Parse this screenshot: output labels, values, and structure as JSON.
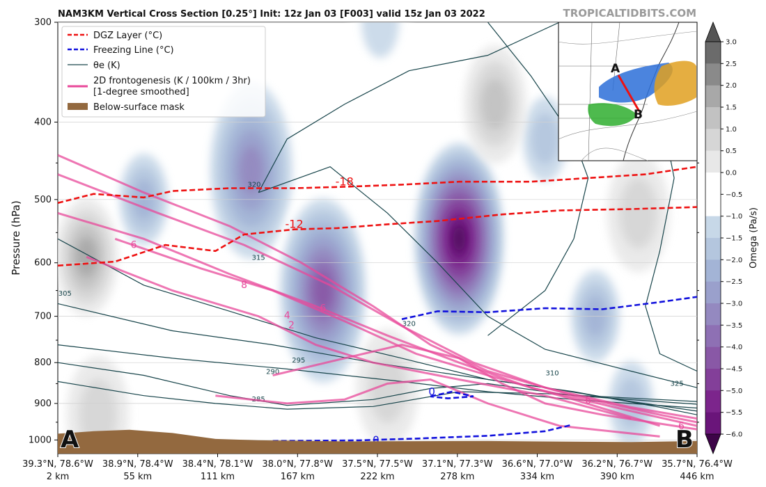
{
  "title": "NAM3KM Vertical Cross Section [0.25°] Init: 12z Jan 03 [F003] valid 15z Jan 03 2022",
  "brand": "TROPICALTIDBITS.COM",
  "colors": {
    "dgz": "#ee1111",
    "freezing": "#1111dd",
    "theta": "#17444a",
    "fronto": "#e8489a",
    "mask": "#93693f"
  },
  "legend": {
    "items": [
      {
        "label": "DGZ Layer (°C)",
        "style": "dgz"
      },
      {
        "label": "Freezing Line (°C)",
        "style": "freezing"
      },
      {
        "label": "θe (K)",
        "style": "theta"
      },
      {
        "label": "2D frontogenesis (K / 100km / 3hr)",
        "label2": "[1-degree smoothed]",
        "style": "fronto"
      },
      {
        "label": "Below-surface mask",
        "style": "mask"
      }
    ]
  },
  "inset": {
    "label_a": "A",
    "label_b": "B"
  },
  "end_labels": {
    "a": "A",
    "b": "B"
  },
  "chart_data": {
    "type": "heatmap",
    "ylabel": "Pressure (hPa)",
    "y_scale": "log",
    "ylim": [
      1040,
      300
    ],
    "y_ticks": [
      300,
      400,
      500,
      600,
      700,
      800,
      900,
      1000
    ],
    "y_minor_ticks": [
      450,
      550,
      650,
      750,
      850,
      950
    ],
    "x_ticks": [
      {
        "latlon": "39.3°N, 78.6°W",
        "km": "2 km"
      },
      {
        "latlon": "38.9°N, 78.4°W",
        "km": "55 km"
      },
      {
        "latlon": "38.4°N, 78.1°W",
        "km": "111 km"
      },
      {
        "latlon": "38.0°N, 77.8°W",
        "km": "167 km"
      },
      {
        "latlon": "37.5°N, 77.5°W",
        "km": "222 km"
      },
      {
        "latlon": "37.1°N, 77.3°W",
        "km": "278 km"
      },
      {
        "latlon": "36.6°N, 77.0°W",
        "km": "334 km"
      },
      {
        "latlon": "36.2°N, 76.7°W",
        "km": "390 km"
      },
      {
        "latlon": "35.7°N, 76.4°W",
        "km": "446 km"
      }
    ],
    "xlim_km": [
      0,
      446
    ],
    "colorbar": {
      "label": "Omega (Pa/s)",
      "ticks": [
        "3.0",
        "2.5",
        "2.0",
        "1.5",
        "1.0",
        "0.5",
        "0.0",
        "−0.5",
        "−1.0",
        "−1.5",
        "−2.0",
        "−2.5",
        "−3.0",
        "−3.5",
        "−4.0",
        "−4.5",
        "−5.0",
        "−5.5",
        "−6.0"
      ],
      "colors": [
        "#6b6b6b",
        "#8a8a8a",
        "#a8a8a8",
        "#c2c2c2",
        "#d6d6d6",
        "#e8e8e8",
        "#ffffff",
        "#ffffff",
        "#c7d8e8",
        "#b4c6de",
        "#a3b4d6",
        "#9aa0cc",
        "#9489c0",
        "#8e70b4",
        "#8958a6",
        "#833f99",
        "#7c258c",
        "#6a157a",
        "#520a60"
      ]
    },
    "omega_blobs": [
      {
        "km": 60,
        "p": 500,
        "value": -2.0
      },
      {
        "km": 135,
        "p": 460,
        "value": -3.0
      },
      {
        "km": 280,
        "p": 560,
        "value": -5.8
      },
      {
        "km": 185,
        "p": 650,
        "value": -4.0
      },
      {
        "km": 340,
        "p": 420,
        "value": -1.5
      },
      {
        "km": 375,
        "p": 700,
        "value": -2.0
      },
      {
        "km": 400,
        "p": 900,
        "value": -1.5
      },
      {
        "km": 225,
        "p": 300,
        "value": -1.0
      },
      {
        "km": 20,
        "p": 590,
        "value": 2.0
      },
      {
        "km": 305,
        "p": 380,
        "value": 1.5
      },
      {
        "km": 405,
        "p": 520,
        "value": 1.0
      },
      {
        "km": 230,
        "p": 860,
        "value": 1.0
      },
      {
        "km": 28,
        "p": 930,
        "value": 1.0
      }
    ],
    "dgz_lines": [
      {
        "label": "-18",
        "km": [
          0,
          25,
          60,
          80,
          120,
          165,
          200,
          240,
          280,
          330,
          370,
          410,
          446
        ],
        "p": [
          505,
          492,
          497,
          488,
          484,
          484,
          482,
          479,
          475,
          475,
          470,
          465,
          455
        ]
      },
      {
        "label": "-12",
        "km": [
          0,
          40,
          75,
          110,
          130,
          165,
          195,
          230,
          265,
          310,
          350,
          400,
          446
        ],
        "p": [
          605,
          598,
          570,
          580,
          553,
          545,
          543,
          537,
          532,
          522,
          516,
          514,
          511
        ]
      }
    ],
    "freezing_lines": [
      {
        "label": "0",
        "km": [
          240,
          265,
          300,
          340,
          380,
          420,
          446
        ],
        "p": [
          706,
          690,
          692,
          684,
          686,
          672,
          662
        ]
      },
      {
        "label": "0",
        "km": [
          150,
          210,
          250,
          300,
          340,
          358
        ],
        "p": [
          1003,
          1001,
          996,
          988,
          975,
          958
        ]
      },
      {
        "label": "0",
        "km": [
          260,
          275,
          290,
          272,
          260
        ],
        "p": [
          882,
          870,
          882,
          887,
          882
        ]
      }
    ],
    "theta_labels": [
      "285",
      "290",
      "295",
      "305",
      "310",
      "315",
      "320",
      "320",
      "325"
    ],
    "fronto_labels": [
      "6",
      "8",
      "4",
      "2",
      "6",
      "6",
      "6"
    ],
    "surface": {
      "km": [
        0,
        25,
        50,
        80,
        110,
        140,
        200,
        300,
        400,
        446
      ],
      "p": [
        982,
        975,
        971,
        980,
        997,
        1001,
        1004,
        1003,
        1006,
        1003
      ]
    }
  }
}
